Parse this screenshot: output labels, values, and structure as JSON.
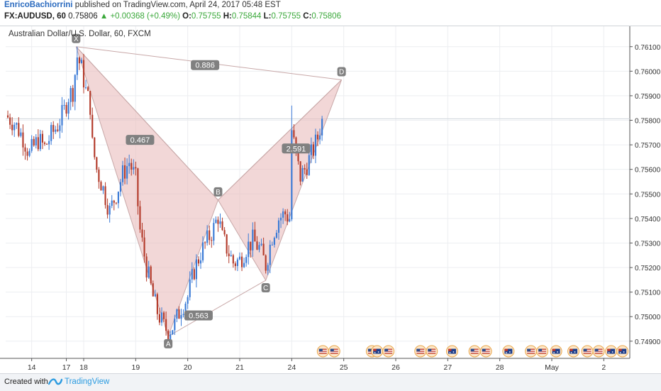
{
  "header": {
    "author": "EnricoBachiorrini",
    "published_text": "published on TradingView.com, April 24, 2017 05:48 EST",
    "symbol": "FX:AUDUSD, 60",
    "last": "0.75806",
    "change": "▲ +0.00368 (+0.49%)",
    "ohlc": [
      {
        "label": "O:",
        "value": "0.75755"
      },
      {
        "label": "H:",
        "value": "0.75844"
      },
      {
        "label": "L:",
        "value": "0.75755"
      },
      {
        "label": "C:",
        "value": "0.75806"
      }
    ]
  },
  "footer": {
    "created_with": "Created with",
    "brand": "TradingView",
    "logo_icon": "tradingview-logo-icon"
  },
  "colors": {
    "up": "#3a7ad6",
    "down": "#b33a2a",
    "pattern_fill": "#e9bcbc",
    "pattern_line": "#c8a8a8",
    "label_bg": "#808080",
    "grid": "#eceef1"
  },
  "chart_data": {
    "type": "candlestick",
    "title": "Australian Dollar/U.S. Dollar, 60, FXCM",
    "ylim": [
      0.7483,
      0.7616
    ],
    "y_ticks": [
      "0.76100",
      "0.76000",
      "0.75900",
      "0.75800",
      "0.75700",
      "0.75600",
      "0.75500",
      "0.75400",
      "0.75300",
      "0.75200",
      "0.75100",
      "0.75000",
      "0.74900"
    ],
    "current_price_line": 0.75806,
    "x_ticks": [
      {
        "label": "14",
        "bar": 0
      },
      {
        "label": "17",
        "bar": 16
      },
      {
        "label": "18",
        "bar": 24
      },
      {
        "label": "19",
        "bar": 48
      },
      {
        "label": "20",
        "bar": 72
      },
      {
        "label": "21",
        "bar": 96
      },
      {
        "label": "24",
        "bar": 120
      },
      {
        "label": "25",
        "bar": 144
      },
      {
        "label": "26",
        "bar": 168
      },
      {
        "label": "27",
        "bar": 192
      },
      {
        "label": "28",
        "bar": 216
      },
      {
        "label": "May",
        "bar": 240
      },
      {
        "label": "2",
        "bar": 264
      }
    ],
    "x_range_bars": [
      -12,
      276
    ],
    "close_path": [
      [
        -12,
        0.7582
      ],
      [
        -8,
        0.7579
      ],
      [
        -4,
        0.7573
      ],
      [
        -1,
        0.7566
      ],
      [
        0,
        0.7568
      ],
      [
        3,
        0.7572
      ],
      [
        6,
        0.7569
      ],
      [
        9,
        0.7574
      ],
      [
        12,
        0.7578
      ],
      [
        15,
        0.7584
      ],
      [
        17,
        0.759
      ],
      [
        19,
        0.7592
      ],
      [
        21,
        0.7606
      ],
      [
        23,
        0.7601
      ],
      [
        25,
        0.7592
      ],
      [
        27,
        0.7586
      ],
      [
        28,
        0.757
      ],
      [
        30,
        0.756
      ],
      [
        33,
        0.7552
      ],
      [
        36,
        0.7543
      ],
      [
        39,
        0.755
      ],
      [
        42,
        0.7558
      ],
      [
        45,
        0.7563
      ],
      [
        48,
        0.7556
      ],
      [
        50,
        0.7535
      ],
      [
        53,
        0.752
      ],
      [
        56,
        0.7508
      ],
      [
        58,
        0.7502
      ],
      [
        61,
        0.7496
      ],
      [
        63,
        0.7494
      ],
      [
        66,
        0.7497
      ],
      [
        69,
        0.7504
      ],
      [
        72,
        0.7508
      ],
      [
        75,
        0.7519
      ],
      [
        78,
        0.7526
      ],
      [
        81,
        0.7531
      ],
      [
        84,
        0.7536
      ],
      [
        86,
        0.7541
      ],
      [
        88,
        0.7532
      ],
      [
        90,
        0.7528
      ],
      [
        93,
        0.7522
      ],
      [
        96,
        0.7523
      ],
      [
        99,
        0.7528
      ],
      [
        102,
        0.7531
      ],
      [
        105,
        0.7528
      ],
      [
        108,
        0.7521
      ],
      [
        111,
        0.7533
      ],
      [
        114,
        0.754
      ],
      [
        117,
        0.7542
      ],
      [
        119,
        0.754
      ],
      [
        120,
        0.7576
      ],
      [
        122,
        0.7565
      ],
      [
        124,
        0.7557
      ],
      [
        126,
        0.756
      ],
      [
        128,
        0.7564
      ],
      [
        130,
        0.7568
      ],
      [
        132,
        0.7573
      ],
      [
        134,
        0.75806
      ]
    ],
    "harmonic_pattern": {
      "points": [
        {
          "label": "X",
          "bar": 20.5,
          "price": 0.761
        },
        {
          "label": "A",
          "bar": 63,
          "price": 0.7492
        },
        {
          "label": "B",
          "bar": 86,
          "price": 0.75475
        },
        {
          "label": "C",
          "bar": 108,
          "price": 0.75148
        },
        {
          "label": "D",
          "bar": 143,
          "price": 0.75965
        }
      ],
      "ratios": [
        {
          "text": "0.886",
          "bar": 80,
          "price": 0.76025
        },
        {
          "text": "0.467",
          "bar": 50,
          "price": 0.7572
        },
        {
          "text": "0.563",
          "bar": 77,
          "price": 0.75005
        },
        {
          "text": "2.591",
          "bar": 122,
          "price": 0.75685
        }
      ]
    },
    "event_icons": [
      {
        "bar": 137,
        "flags": [
          "us",
          "us"
        ]
      },
      {
        "bar": 157,
        "flags": [
          "us"
        ]
      },
      {
        "bar": 162,
        "flags": [
          "au",
          "us"
        ]
      },
      {
        "bar": 182,
        "flags": [
          "us",
          "us"
        ]
      },
      {
        "bar": 194,
        "flags": [
          "au"
        ]
      },
      {
        "bar": 207,
        "flags": [
          "us",
          "us"
        ]
      },
      {
        "bar": 220,
        "flags": [
          "au"
        ]
      },
      {
        "bar": 233,
        "flags": [
          "us",
          "us"
        ]
      },
      {
        "bar": 242,
        "flags": [
          "au"
        ]
      },
      {
        "bar": 250,
        "flags": [
          "au"
        ]
      },
      {
        "bar": 259,
        "flags": [
          "us",
          "us"
        ]
      },
      {
        "bar": 270,
        "flags": [
          "au",
          "au"
        ]
      }
    ]
  }
}
